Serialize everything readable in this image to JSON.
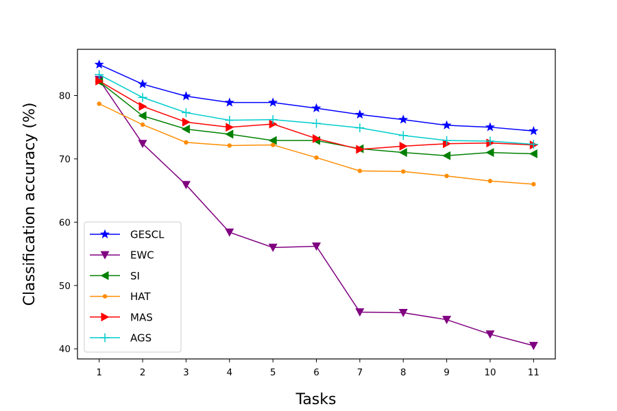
{
  "chart_data": {
    "type": "line",
    "title": "",
    "xlabel": "Tasks",
    "ylabel": "Classification accuracy (%)",
    "x": [
      1,
      2,
      3,
      4,
      5,
      6,
      7,
      8,
      9,
      10,
      11
    ],
    "xlim": [
      0.5,
      11.5
    ],
    "ylim": [
      38.4,
      87.3
    ],
    "yticks": [
      40,
      50,
      60,
      70,
      80
    ],
    "grid": false,
    "legend_position": "lower-left",
    "series": [
      {
        "name": "GESCL",
        "color": "#0000ff",
        "marker": "star",
        "values": [
          84.9,
          81.8,
          79.9,
          78.9,
          78.9,
          78.0,
          77.0,
          76.2,
          75.3,
          75.0,
          74.4
        ]
      },
      {
        "name": "EWC",
        "color": "#800080",
        "marker": "triangle-down",
        "values": [
          82.5,
          72.4,
          65.9,
          58.4,
          56.0,
          56.2,
          45.8,
          45.7,
          44.6,
          42.3,
          40.5
        ]
      },
      {
        "name": "SI",
        "color": "#008000",
        "marker": "triangle-left",
        "values": [
          82.2,
          76.8,
          74.7,
          73.9,
          72.9,
          72.9,
          71.6,
          71.0,
          70.5,
          71.0,
          70.8
        ]
      },
      {
        "name": "HAT",
        "color": "#ff8c00",
        "marker": "dot",
        "values": [
          78.7,
          75.4,
          72.6,
          72.1,
          72.2,
          70.2,
          68.1,
          68.0,
          67.3,
          66.5,
          66.0
        ]
      },
      {
        "name": "MAS",
        "color": "#ff0000",
        "marker": "triangle-right",
        "values": [
          82.3,
          78.3,
          75.8,
          75.0,
          75.5,
          73.2,
          71.5,
          72.0,
          72.4,
          72.5,
          72.2
        ]
      },
      {
        "name": "AGS",
        "color": "#00cccc",
        "marker": "plus",
        "values": [
          83.3,
          79.7,
          77.3,
          76.1,
          76.2,
          75.6,
          74.9,
          73.7,
          72.9,
          72.8,
          72.3
        ]
      }
    ]
  }
}
